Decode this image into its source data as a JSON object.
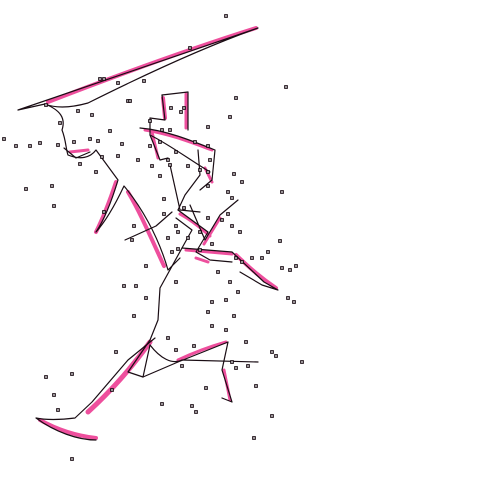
{
  "colors": {
    "background": "#ffffff",
    "ribbon": "#ee4f9d",
    "line": "#1a0d14",
    "dot": "#1a0d14"
  }
}
